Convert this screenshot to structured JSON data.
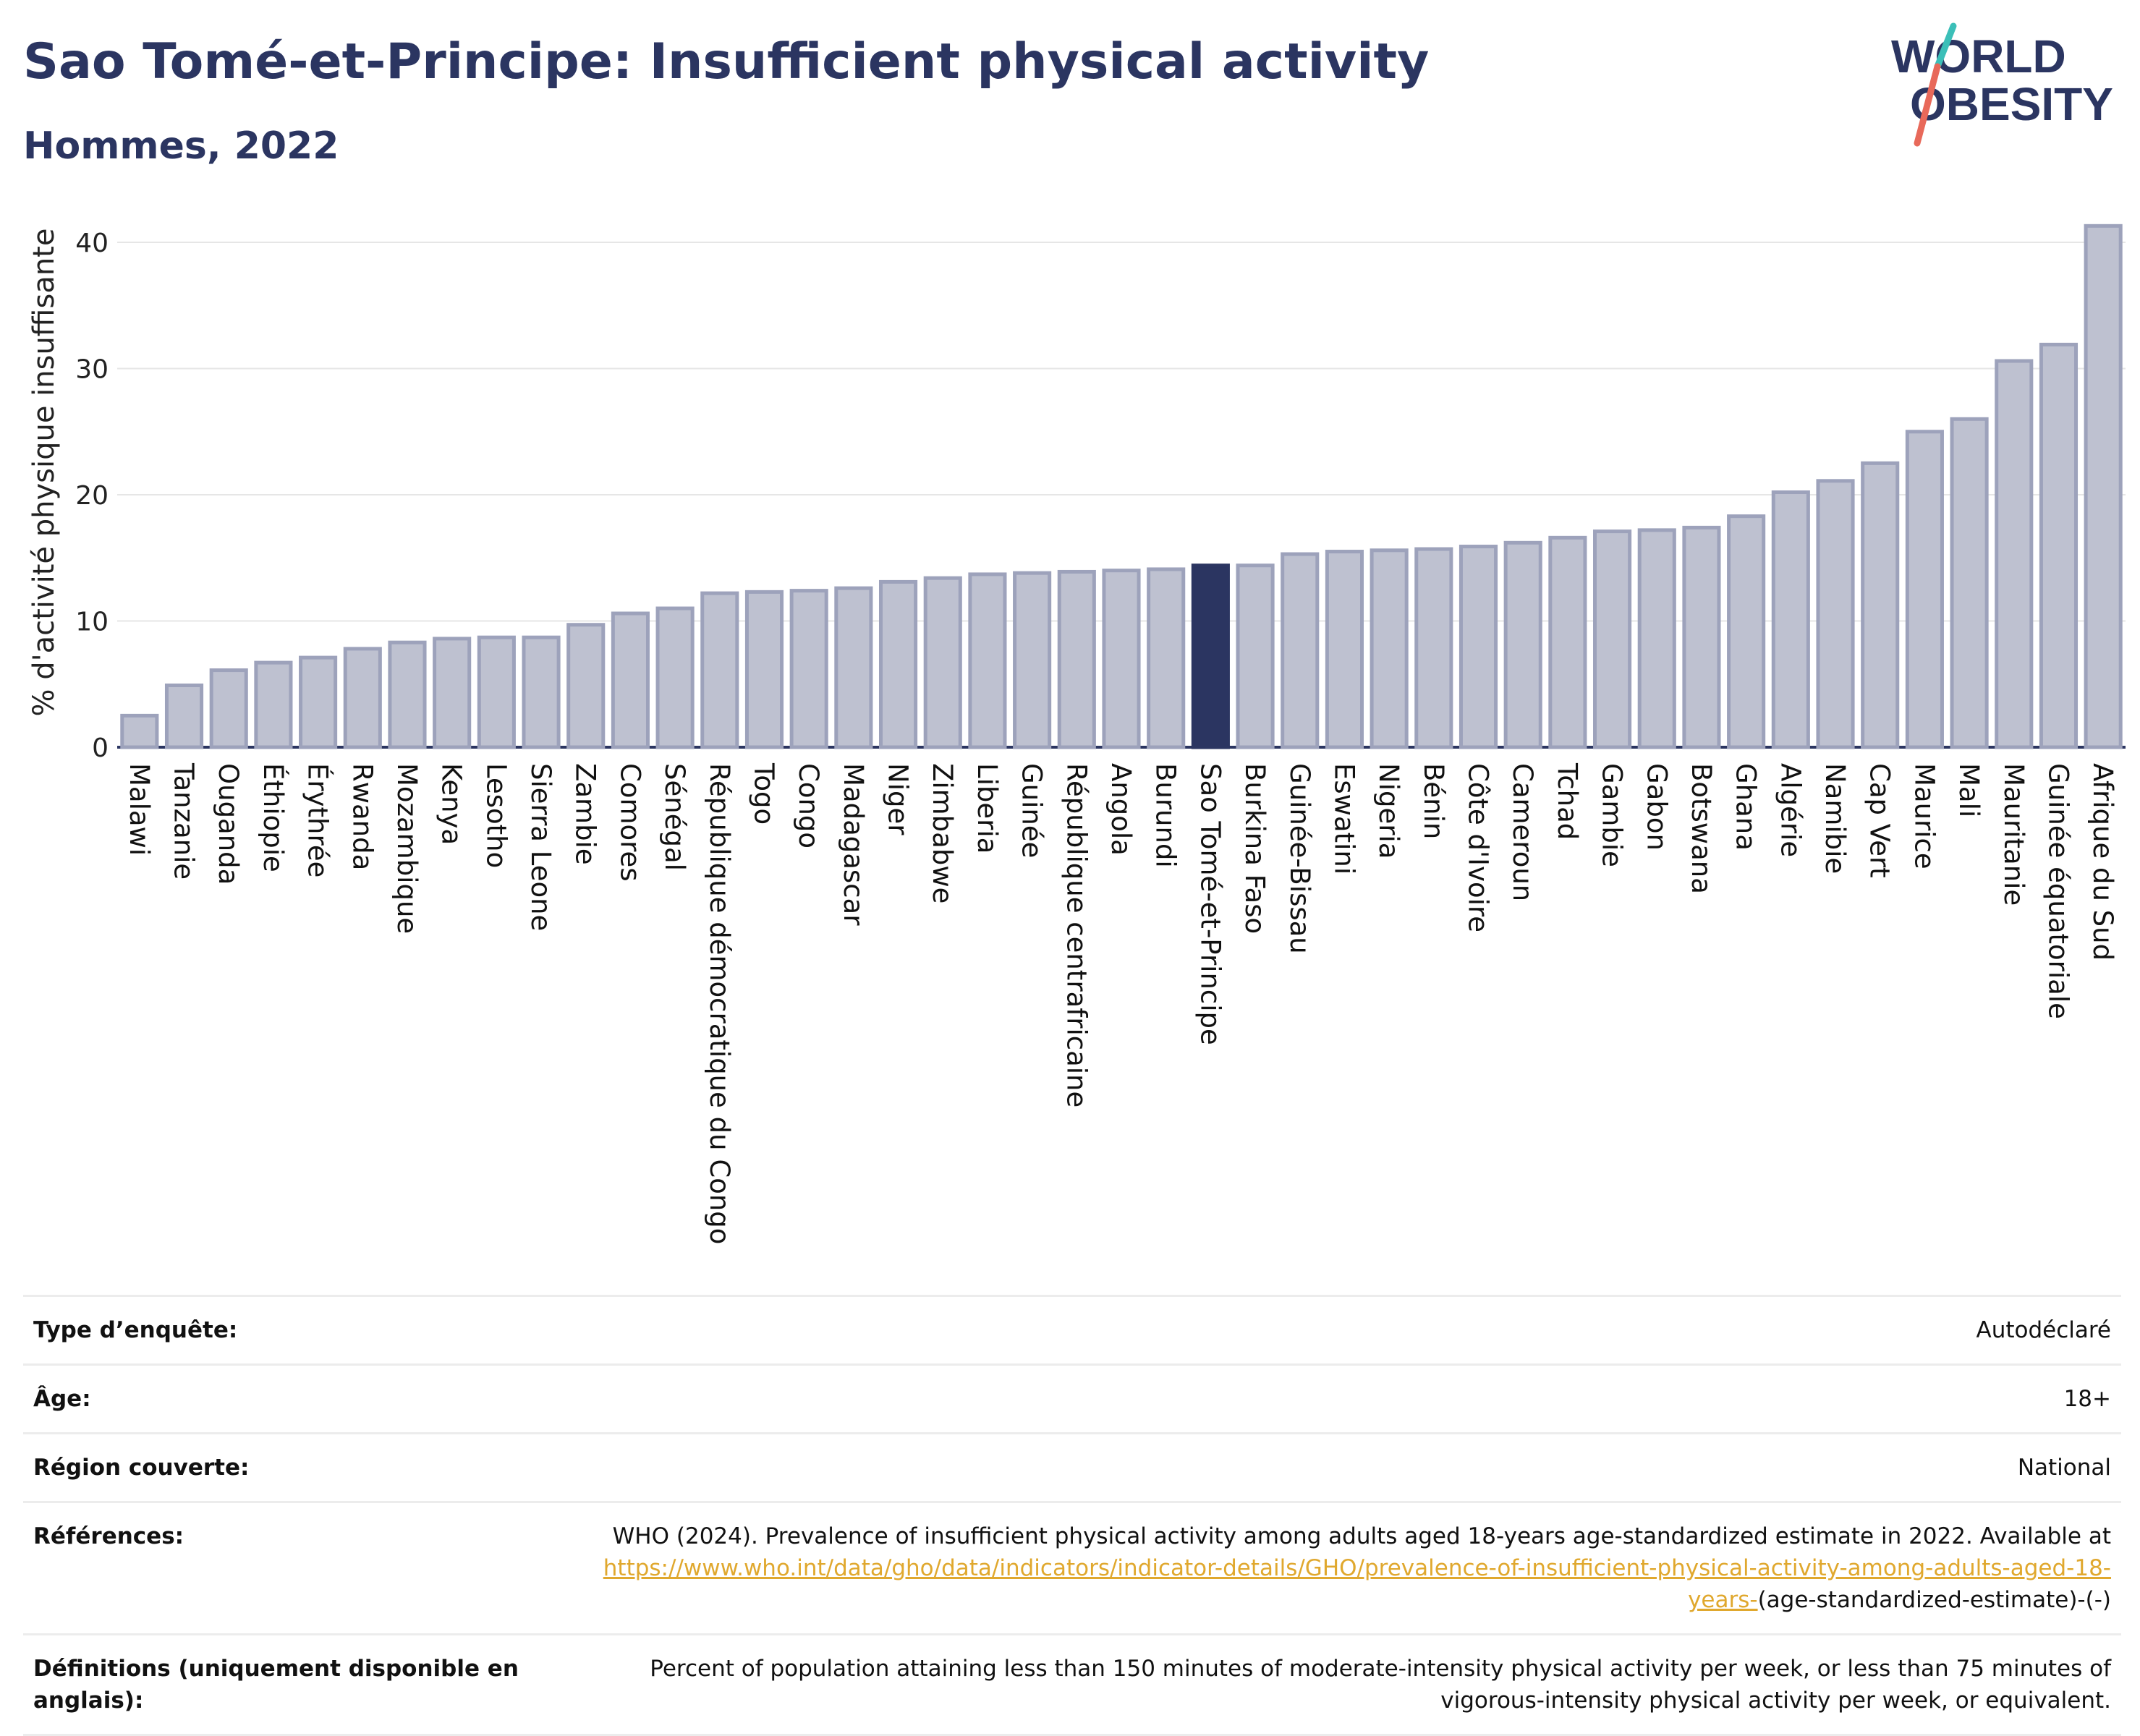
{
  "header": {
    "title": "Sao Tomé-et-Principe: Insufficient physical activity",
    "subtitle": "Hommes, 2022"
  },
  "logo": {
    "line1": "WORLD",
    "line2": "OBESITY",
    "colors": {
      "text": "#2b3561",
      "slash_teal": "#3bbfb8",
      "slash_red": "#e8695a"
    }
  },
  "colors": {
    "bar": "#bec1d0",
    "bar_border": "#9da2bb",
    "highlight": "#2b3561",
    "grid": "#e6e6e6",
    "axis": "#2b3561"
  },
  "chart_data": {
    "type": "bar",
    "title": "Sao Tomé-et-Principe: Insufficient physical activity",
    "subtitle": "Hommes, 2022",
    "ylabel": "% d'activité physique insuffisante",
    "xlabel": "",
    "ylim": [
      0,
      42
    ],
    "yticks": [
      0,
      10,
      20,
      30,
      40
    ],
    "grid": true,
    "highlight": "Sao Tomé-et-Principe",
    "categories": [
      "Malawi",
      "Tanzanie",
      "Ouganda",
      "Éthiopie",
      "Érythrée",
      "Rwanda",
      "Mozambique",
      "Kenya",
      "Lesotho",
      "Sierra Leone",
      "Zambie",
      "Comores",
      "Sénégal",
      "République démocratique du Congo",
      "Togo",
      "Congo",
      "Madagascar",
      "Niger",
      "Zimbabwe",
      "Liberia",
      "Guinée",
      "République centrafricaine",
      "Angola",
      "Burundi",
      "Sao Tomé-et-Principe",
      "Burkina Faso",
      "Guinée-Bissau",
      "Eswatini",
      "Nigeria",
      "Bénin",
      "Côte d'Ivoire",
      "Cameroun",
      "Tchad",
      "Gambie",
      "Gabon",
      "Botswana",
      "Ghana",
      "Algérie",
      "Namibie",
      "Cap Vert",
      "Maurice",
      "Mali",
      "Mauritanie",
      "Guinée équatoriale",
      "Afrique du Sud"
    ],
    "values": [
      2.5,
      4.9,
      6.1,
      6.7,
      7.1,
      7.8,
      8.3,
      8.6,
      8.7,
      8.7,
      9.7,
      10.6,
      11.0,
      12.2,
      12.3,
      12.4,
      12.6,
      13.1,
      13.4,
      13.7,
      13.8,
      13.9,
      14.0,
      14.1,
      14.4,
      14.4,
      15.3,
      15.5,
      15.6,
      15.7,
      15.9,
      16.2,
      16.6,
      17.1,
      17.2,
      17.4,
      18.3,
      20.2,
      21.1,
      22.5,
      25.0,
      26.0,
      30.6,
      31.9,
      41.3
    ]
  },
  "info": {
    "rows": [
      {
        "label": "Type d’enquête:",
        "value": "Autodéclaré"
      },
      {
        "label": "Âge:",
        "value": "18+"
      },
      {
        "label": "Région couverte:",
        "value": "National"
      }
    ],
    "references": {
      "label": "Références:",
      "text_before": "WHO (2024). Prevalence of insufficient physical activity among adults aged 18-years age-standardized estimate in 2022. Available at",
      "link_text": "https://www.who.int/data/gho/data/indicators/indicator-details/GHO/prevalence-of-insufficient-physical-activity-among-adults-aged-18-years-",
      "text_after": "(age-standardized-estimate)-(-)"
    },
    "definitions": {
      "label": "Définitions (uniquement disponible en anglais):",
      "value": "Percent of population attaining less than 150 minutes of moderate-intensity physical activity per week, or less than 75 minutes of vigorous-intensity physical activity per week, or equivalent."
    }
  }
}
